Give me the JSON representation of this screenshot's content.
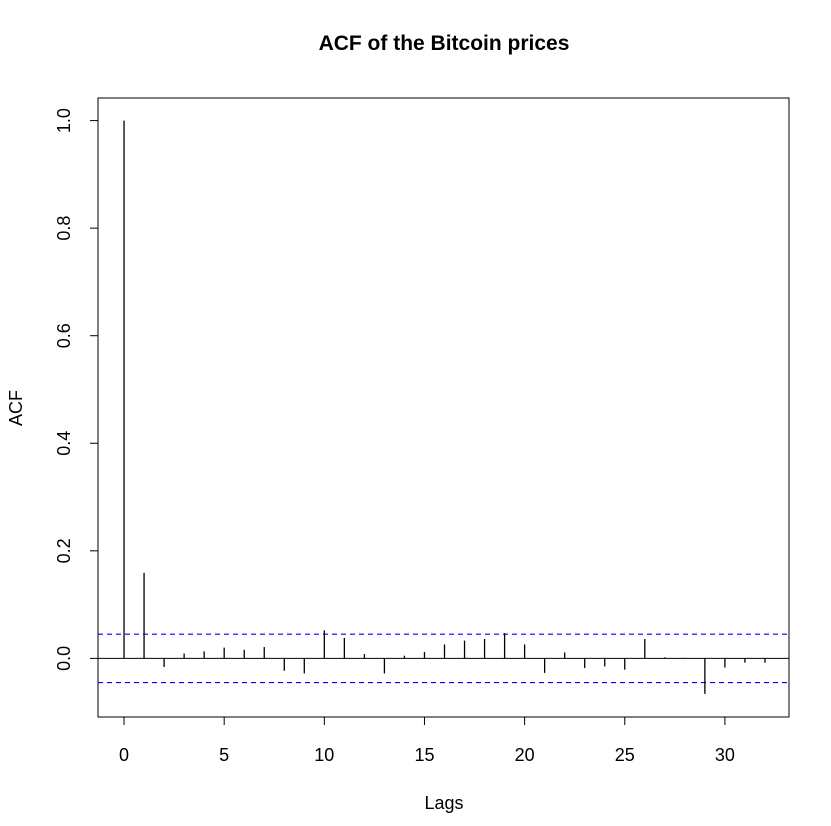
{
  "chart_data": {
    "type": "bar",
    "title": "ACF of the Bitcoin prices",
    "xlabel": "Lags",
    "ylabel": "ACF",
    "xlim": [
      -1.3,
      33.2
    ],
    "ylim": [
      -0.109,
      1.042
    ],
    "x_ticks": [
      0,
      5,
      10,
      15,
      20,
      25,
      30
    ],
    "y_ticks": [
      0.0,
      0.2,
      0.4,
      0.6,
      0.8,
      1.0
    ],
    "y_tick_labels": [
      "0.0",
      "0.2",
      "0.4",
      "0.6",
      "0.8",
      "1.0"
    ],
    "confidence_bound": 0.045,
    "confidence_color": "#0000ff",
    "grid": false,
    "series": [
      {
        "lags": [
          0,
          1,
          2,
          3,
          4,
          5,
          6,
          7,
          8,
          9,
          10,
          11,
          12,
          13,
          14,
          15,
          16,
          17,
          18,
          19,
          20,
          21,
          22,
          23,
          24,
          25,
          26,
          27,
          28,
          29,
          30,
          31,
          32
        ],
        "values": [
          1.0,
          0.159,
          -0.016,
          0.009,
          0.013,
          0.02,
          0.016,
          0.021,
          -0.023,
          -0.028,
          0.052,
          0.038,
          0.008,
          -0.028,
          0.005,
          0.012,
          0.026,
          0.033,
          0.036,
          0.047,
          0.026,
          -0.027,
          0.011,
          -0.018,
          -0.015,
          -0.021,
          0.036,
          0.002,
          0.001,
          -0.066,
          -0.017,
          -0.008,
          -0.008
        ]
      }
    ]
  }
}
